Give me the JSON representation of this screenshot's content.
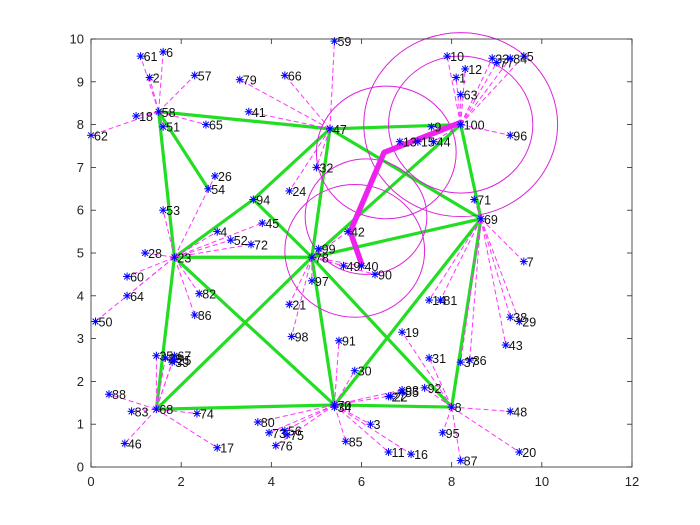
{
  "chart_data": {
    "type": "scatter",
    "title": "",
    "xlabel": "",
    "ylabel": "",
    "xlim": [
      0,
      12
    ],
    "ylim": [
      0,
      10
    ],
    "x_ticks": [
      0,
      2,
      4,
      6,
      8,
      10,
      12
    ],
    "y_ticks": [
      0,
      1,
      2,
      3,
      4,
      5,
      6,
      7,
      8,
      9,
      10
    ],
    "grid": false,
    "legend": "none",
    "colors": {
      "marker": "#0000ff",
      "backbone": "#22dd22",
      "links": "#ff33ff",
      "circles": "#dd22dd",
      "path": "#ee22ee"
    },
    "nodes": [
      {
        "id": "1",
        "x": 8.1,
        "y": 9.1
      },
      {
        "id": "2",
        "x": 1.3,
        "y": 9.1
      },
      {
        "id": "3",
        "x": 6.2,
        "y": 1.0
      },
      {
        "id": "4",
        "x": 2.8,
        "y": 5.5
      },
      {
        "id": "5",
        "x": 9.6,
        "y": 9.6
      },
      {
        "id": "6",
        "x": 1.6,
        "y": 9.7
      },
      {
        "id": "7",
        "x": 9.6,
        "y": 4.8
      },
      {
        "id": "8",
        "x": 8.0,
        "y": 1.4
      },
      {
        "id": "10",
        "x": 7.9,
        "y": 9.6
      },
      {
        "id": "11",
        "x": 6.6,
        "y": 0.35
      },
      {
        "id": "12",
        "x": 8.3,
        "y": 9.3
      },
      {
        "id": "14",
        "x": 7.5,
        "y": 3.9
      },
      {
        "id": "16",
        "x": 7.1,
        "y": 0.3
      },
      {
        "id": "17",
        "x": 2.8,
        "y": 0.45
      },
      {
        "id": "18",
        "x": 1.0,
        "y": 8.2
      },
      {
        "id": "19",
        "x": 6.9,
        "y": 3.15
      },
      {
        "id": "20",
        "x": 9.5,
        "y": 0.35
      },
      {
        "id": "21",
        "x": 4.4,
        "y": 3.8
      },
      {
        "id": "23",
        "x": 1.85,
        "y": 4.9
      },
      {
        "id": "24",
        "x": 4.4,
        "y": 6.45
      },
      {
        "id": "26",
        "x": 2.75,
        "y": 6.8
      },
      {
        "id": "27",
        "x": 6.6,
        "y": 1.65
      },
      {
        "id": "28",
        "x": 1.2,
        "y": 5.0
      },
      {
        "id": "29",
        "x": 9.5,
        "y": 3.4
      },
      {
        "id": "30",
        "x": 5.85,
        "y": 2.25
      },
      {
        "id": "31",
        "x": 7.5,
        "y": 2.55
      },
      {
        "id": "32",
        "x": 5.0,
        "y": 7.0
      },
      {
        "id": "33",
        "x": 8.9,
        "y": 9.55
      },
      {
        "id": "34",
        "x": 5.4,
        "y": 1.4
      },
      {
        "id": "35",
        "x": 1.45,
        "y": 2.6
      },
      {
        "id": "36",
        "x": 8.4,
        "y": 2.5
      },
      {
        "id": "37",
        "x": 8.2,
        "y": 2.45
      },
      {
        "id": "38",
        "x": 9.3,
        "y": 3.5
      },
      {
        "id": "39",
        "x": 1.8,
        "y": 2.45
      },
      {
        "id": "40",
        "x": 6.0,
        "y": 4.7
      },
      {
        "id": "41",
        "x": 3.5,
        "y": 8.3
      },
      {
        "id": "42",
        "x": 5.7,
        "y": 5.5
      },
      {
        "id": "43",
        "x": 9.2,
        "y": 2.85
      },
      {
        "id": "44",
        "x": 7.6,
        "y": 7.6
      },
      {
        "id": "45",
        "x": 3.8,
        "y": 5.7
      },
      {
        "id": "46",
        "x": 0.75,
        "y": 0.55
      },
      {
        "id": "47",
        "x": 5.3,
        "y": 7.9
      },
      {
        "id": "48",
        "x": 9.3,
        "y": 1.3
      },
      {
        "id": "49",
        "x": 5.6,
        "y": 4.7
      },
      {
        "id": "50",
        "x": 0.1,
        "y": 3.4
      },
      {
        "id": "51",
        "x": 1.6,
        "y": 7.95
      },
      {
        "id": "52",
        "x": 3.1,
        "y": 5.3
      },
      {
        "id": "53",
        "x": 1.6,
        "y": 6.0
      },
      {
        "id": "54",
        "x": 2.6,
        "y": 6.5
      },
      {
        "id": "56",
        "x": 4.3,
        "y": 0.85
      },
      {
        "id": "57",
        "x": 2.3,
        "y": 9.15
      },
      {
        "id": "58",
        "x": 1.5,
        "y": 8.3
      },
      {
        "id": "59",
        "x": 5.4,
        "y": 9.95
      },
      {
        "id": "60",
        "x": 0.8,
        "y": 4.45
      },
      {
        "id": "61",
        "x": 1.1,
        "y": 9.6
      },
      {
        "id": "62",
        "x": 0.0,
        "y": 7.75
      },
      {
        "id": "63",
        "x": 8.2,
        "y": 8.7
      },
      {
        "id": "64",
        "x": 0.8,
        "y": 4.0
      },
      {
        "id": "65",
        "x": 2.55,
        "y": 8.0
      },
      {
        "id": "66",
        "x": 4.3,
        "y": 9.15
      },
      {
        "id": "67",
        "x": 1.85,
        "y": 2.6
      },
      {
        "id": "68",
        "x": 1.45,
        "y": 1.35
      },
      {
        "id": "69",
        "x": 8.65,
        "y": 5.8
      },
      {
        "id": "70",
        "x": 5.4,
        "y": 1.45
      },
      {
        "id": "71",
        "x": 8.5,
        "y": 6.25
      },
      {
        "id": "72",
        "x": 3.55,
        "y": 5.2
      },
      {
        "id": "73",
        "x": 3.95,
        "y": 0.8
      },
      {
        "id": "74",
        "x": 2.35,
        "y": 1.25
      },
      {
        "id": "76",
        "x": 4.1,
        "y": 0.5
      },
      {
        "id": "77",
        "x": 9.0,
        "y": 9.45
      },
      {
        "id": "78",
        "x": 4.9,
        "y": 4.9
      },
      {
        "id": "79",
        "x": 3.3,
        "y": 9.05
      },
      {
        "id": "80",
        "x": 3.7,
        "y": 1.05
      },
      {
        "id": "81",
        "x": 7.75,
        "y": 3.9
      },
      {
        "id": "82",
        "x": 2.4,
        "y": 4.05
      },
      {
        "id": "83",
        "x": 0.9,
        "y": 1.3
      },
      {
        "id": "84",
        "x": 9.3,
        "y": 9.55
      },
      {
        "id": "85",
        "x": 5.65,
        "y": 0.6
      },
      {
        "id": "86",
        "x": 2.3,
        "y": 3.55
      },
      {
        "id": "87",
        "x": 8.2,
        "y": 0.15
      },
      {
        "id": "88",
        "x": 0.4,
        "y": 1.7
      },
      {
        "id": "89",
        "x": 1.65,
        "y": 2.55
      },
      {
        "id": "90",
        "x": 6.3,
        "y": 4.5
      },
      {
        "id": "91",
        "x": 5.5,
        "y": 2.95
      },
      {
        "id": "92",
        "x": 7.4,
        "y": 1.85
      },
      {
        "id": "93",
        "x": 6.9,
        "y": 1.8
      },
      {
        "id": "94",
        "x": 3.6,
        "y": 6.25
      },
      {
        "id": "95",
        "x": 7.8,
        "y": 0.8
      },
      {
        "id": "96",
        "x": 9.3,
        "y": 7.75
      },
      {
        "id": "97",
        "x": 4.9,
        "y": 4.35
      },
      {
        "id": "98",
        "x": 4.45,
        "y": 3.05
      },
      {
        "id": "99",
        "x": 5.05,
        "y": 5.1
      },
      {
        "id": "100",
        "x": 8.2,
        "y": 8.0
      },
      {
        "id": "13",
        "x": 6.85,
        "y": 7.6
      },
      {
        "id": "15",
        "x": 7.25,
        "y": 7.6
      },
      {
        "id": "9",
        "x": 7.55,
        "y": 7.95
      },
      {
        "id": "22",
        "x": 6.65,
        "y": 1.65
      },
      {
        "id": "55",
        "x": 6.9,
        "y": 1.75
      },
      {
        "id": "25",
        "x": 1.85,
        "y": 2.5
      },
      {
        "id": "75",
        "x": 4.35,
        "y": 0.75
      }
    ],
    "backbone_edges": [
      [
        "58",
        "47"
      ],
      [
        "58",
        "23"
      ],
      [
        "58",
        "54"
      ],
      [
        "47",
        "100"
      ],
      [
        "47",
        "94"
      ],
      [
        "47",
        "78"
      ],
      [
        "47",
        "69"
      ],
      [
        "100",
        "69"
      ],
      [
        "94",
        "23"
      ],
      [
        "94",
        "78"
      ],
      [
        "23",
        "78"
      ],
      [
        "23",
        "68"
      ],
      [
        "23",
        "70"
      ],
      [
        "78",
        "68"
      ],
      [
        "78",
        "69"
      ],
      [
        "78",
        "70"
      ],
      [
        "78",
        "8"
      ],
      [
        "69",
        "70"
      ],
      [
        "69",
        "8"
      ],
      [
        "68",
        "70"
      ],
      [
        "70",
        "8"
      ],
      [
        "100",
        "78"
      ]
    ],
    "hub_links": [
      {
        "hub": "58",
        "members": [
          "61",
          "6",
          "2",
          "18",
          "62",
          "51",
          "65",
          "57"
        ]
      },
      {
        "hub": "47",
        "members": [
          "59",
          "79",
          "66",
          "41",
          "32",
          "24"
        ]
      },
      {
        "hub": "100",
        "members": [
          "10",
          "1",
          "12",
          "33",
          "77",
          "5",
          "84",
          "63",
          "96",
          "44",
          "9"
        ]
      },
      {
        "hub": "23",
        "members": [
          "28",
          "60",
          "64",
          "50",
          "53",
          "26",
          "4",
          "52",
          "72",
          "82",
          "86",
          "45"
        ]
      },
      {
        "hub": "78",
        "members": [
          "97",
          "21",
          "98",
          "99",
          "42",
          "49",
          "40",
          "90"
        ]
      },
      {
        "hub": "69",
        "members": [
          "71",
          "7",
          "38",
          "29",
          "43",
          "14",
          "81",
          "36",
          "37"
        ]
      },
      {
        "hub": "68",
        "members": [
          "88",
          "83",
          "46",
          "35",
          "67",
          "39",
          "89",
          "17",
          "74"
        ]
      },
      {
        "hub": "70",
        "members": [
          "34",
          "91",
          "30",
          "3",
          "85",
          "80",
          "73",
          "56",
          "76",
          "11",
          "16",
          "27",
          "93"
        ]
      },
      {
        "hub": "8",
        "members": [
          "48",
          "20",
          "87",
          "95",
          "92",
          "31",
          "19"
        ]
      }
    ],
    "circles": [
      {
        "cx": 5.85,
        "cy": 5.05,
        "r": 1.55
      },
      {
        "cx": 6.1,
        "cy": 5.85,
        "r": 1.35
      },
      {
        "cx": 6.55,
        "cy": 7.35,
        "r": 1.55
      },
      {
        "cx": 8.2,
        "cy": 8.0,
        "r": 1.6
      },
      {
        "cx": 8.2,
        "cy": 8.0,
        "r": 2.15
      }
    ],
    "highlight_path": [
      {
        "x": 6.0,
        "y": 4.75
      },
      {
        "x": 5.75,
        "y": 5.5
      },
      {
        "x": 6.5,
        "y": 7.35
      },
      {
        "x": 7.6,
        "y": 7.8
      },
      {
        "x": 8.2,
        "y": 8.05
      }
    ]
  }
}
